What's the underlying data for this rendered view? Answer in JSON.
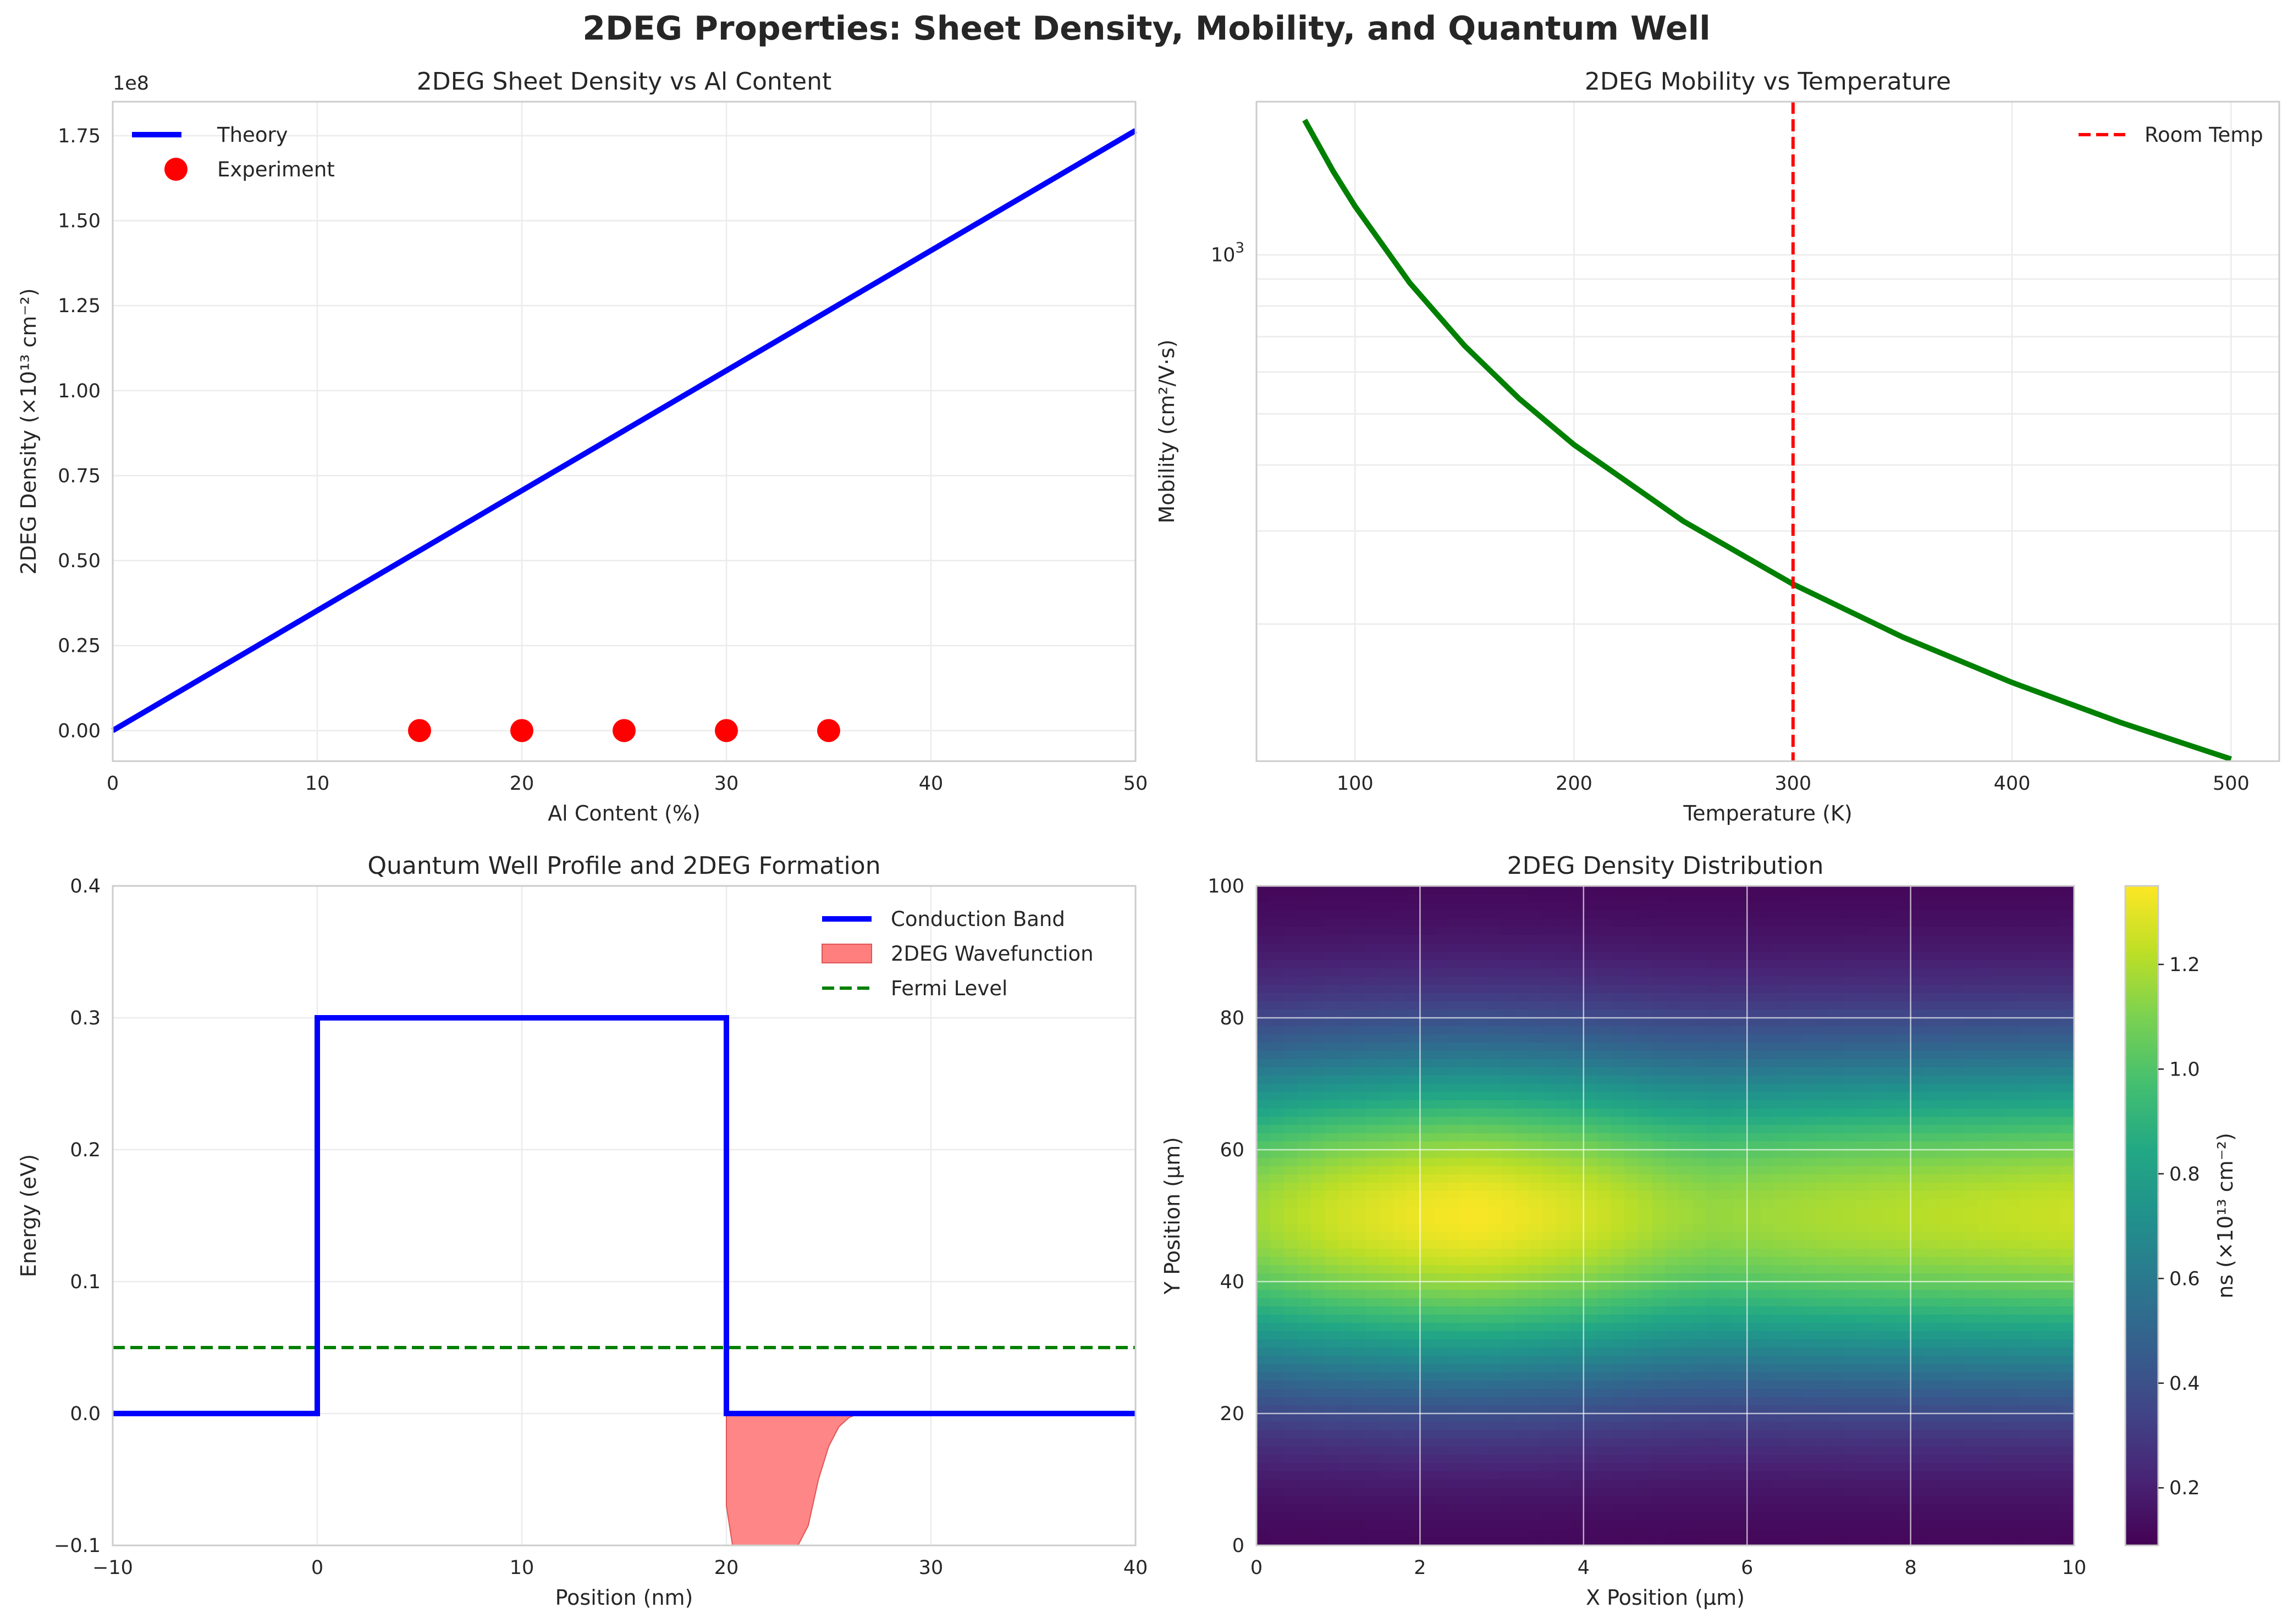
{
  "figure": {
    "title": "2DEG Properties: Sheet Density, Mobility, and Quantum Well"
  },
  "colors": {
    "theory": "#0000ff",
    "experiment": "#ff0000",
    "mobility": "#008000",
    "room_temp": "#ff0000",
    "conduction_band": "#0000ff",
    "wavefunction": "#ff7f7f",
    "fermi": "#008000"
  },
  "chart_data": [
    {
      "id": "sheet-density",
      "type": "line",
      "title": "2DEG Sheet Density vs Al Content",
      "xlabel": "Al Content (%)",
      "ylabel": "2DEG Density (×10¹³ cm⁻²)",
      "offset_text": "1e8",
      "xlim": [
        0,
        50
      ],
      "ylim": [
        -0.09,
        1.85
      ],
      "xticks": [
        0,
        10,
        20,
        30,
        40,
        50
      ],
      "yticks": [
        0.0,
        0.25,
        0.5,
        0.75,
        1.0,
        1.25,
        1.5,
        1.75
      ],
      "ytick_labels": [
        "0.00",
        "0.25",
        "0.50",
        "0.75",
        "1.00",
        "1.25",
        "1.50",
        "1.75"
      ],
      "grid": true,
      "legend_position": "upper-left",
      "series": [
        {
          "name": "Theory",
          "kind": "line",
          "x": [
            0,
            50
          ],
          "y": [
            0.0,
            1.765
          ]
        },
        {
          "name": "Experiment",
          "kind": "scatter",
          "x": [
            15,
            20,
            25,
            30,
            35
          ],
          "y": [
            0.0,
            0.0,
            0.0,
            0.0,
            0.0
          ]
        }
      ]
    },
    {
      "id": "mobility",
      "type": "line",
      "title": "2DEG Mobility vs Temperature",
      "xlabel": "Temperature (K)",
      "ylabel": "Mobility (cm²/V·s)",
      "xlim": [
        55,
        522
      ],
      "ylim": [
        110,
        1950
      ],
      "yscale": "log",
      "xticks": [
        100,
        200,
        300,
        400,
        500
      ],
      "ytick_major": [
        {
          "value": 1000,
          "base": "10",
          "exp": "3"
        }
      ],
      "grid": true,
      "legend_position": "upper-right",
      "series": [
        {
          "name": "",
          "kind": "line",
          "x": [
            77,
            90,
            100,
            125,
            150,
            175,
            200,
            250,
            300,
            350,
            400,
            450,
            500
          ],
          "y": [
            1800,
            1440,
            1236,
            885,
            673,
            534,
            437,
            313,
            238,
            189,
            155,
            130,
            111
          ]
        }
      ],
      "vlines": [
        {
          "name": "Room Temp",
          "x": 300,
          "style": "dashed"
        }
      ]
    },
    {
      "id": "quantum-well",
      "type": "line",
      "title": "Quantum Well Profile and 2DEG Formation",
      "xlabel": "Position (nm)",
      "ylabel": "Energy (eV)",
      "xlim": [
        -10,
        40
      ],
      "ylim": [
        -0.1,
        0.4
      ],
      "xticks": [
        -10,
        0,
        10,
        20,
        30,
        40
      ],
      "xtick_labels": [
        "−10",
        "0",
        "10",
        "20",
        "30",
        "40"
      ],
      "yticks": [
        -0.1,
        0.0,
        0.1,
        0.2,
        0.3,
        0.4
      ],
      "ytick_labels": [
        "−0.1",
        "0.0",
        "0.1",
        "0.2",
        "0.3",
        "0.4"
      ],
      "grid": true,
      "legend_position": "upper-right",
      "series": [
        {
          "name": "Conduction Band",
          "kind": "line",
          "x": [
            -10,
            0,
            0,
            20,
            20,
            40
          ],
          "y": [
            0,
            0,
            0.3,
            0.3,
            0,
            0
          ]
        },
        {
          "name": "2DEG Wavefunction",
          "kind": "fill",
          "x": [
            20,
            20.3,
            21,
            22,
            23,
            23.5,
            24,
            24.5,
            25,
            25.5,
            26,
            26.5
          ],
          "y": [
            -0.07,
            -0.1,
            -0.1,
            -0.1,
            -0.1,
            -0.1,
            -0.085,
            -0.05,
            -0.025,
            -0.01,
            -0.003,
            0
          ]
        },
        {
          "name": "Fermi Level",
          "kind": "hline",
          "y": 0.05,
          "style": "dashed"
        }
      ]
    },
    {
      "id": "density-map",
      "type": "heatmap",
      "title": "2DEG Density Distribution",
      "xlabel": "X Position (μm)",
      "ylabel": "Y Position (μm)",
      "xlim": [
        0,
        10
      ],
      "ylim": [
        0,
        100
      ],
      "xticks": [
        0,
        2,
        4,
        6,
        8,
        10
      ],
      "yticks": [
        0,
        20,
        40,
        60,
        80,
        100
      ],
      "grid": true,
      "colormap": "viridis",
      "clim": [
        0.09,
        1.35
      ],
      "colorbar_label": "ns (×10¹³ cm⁻²)",
      "colorbar_ticks": [
        0.2,
        0.4,
        0.6,
        0.8,
        1.0,
        1.2
      ],
      "colorbar_tick_labels": [
        "0.2",
        "0.4",
        "0.6",
        "0.8",
        "1.0",
        "1.2"
      ],
      "x_profile": {
        "x": [
          0,
          1,
          2,
          2.6,
          3,
          4,
          5,
          5.6,
          6,
          7,
          8,
          9,
          10
        ],
        "y": [
          1.17,
          1.26,
          1.32,
          1.34,
          1.33,
          1.27,
          1.18,
          1.15,
          1.16,
          1.19,
          1.21,
          1.23,
          1.25
        ]
      },
      "y_profile": {
        "center": 50,
        "sigma": 18,
        "floor": 0.09
      }
    }
  ]
}
